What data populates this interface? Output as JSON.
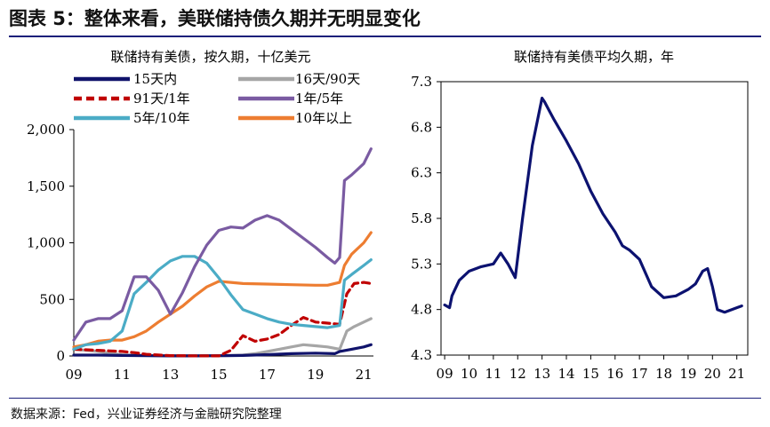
{
  "figure": {
    "title": "图表 5：整体来看，美联储持债久期并无明显变化",
    "source": "数据来源：Fed，兴业证券经济与金融研究院整理"
  },
  "chart_data": [
    {
      "type": "line",
      "title": "联储持有美债，按久期，十亿美元",
      "xlabel": "",
      "ylabel": "",
      "x_tick_labels": [
        "09",
        "11",
        "13",
        "15",
        "17",
        "19",
        "21"
      ],
      "xlim": [
        2009.0,
        2021.4
      ],
      "ylim": [
        0,
        2000
      ],
      "y_ticks": [
        0,
        500,
        1000,
        1500,
        2000
      ],
      "y_tick_labels": [
        "0",
        "500",
        "1,000",
        "1,500",
        "2,000"
      ],
      "legend_position": "top",
      "series": [
        {
          "name": "15天内",
          "color": "#10136b",
          "dash": "solid",
          "x": [
            2009,
            2010,
            2011,
            2012,
            2013,
            2014,
            2015,
            2016,
            2017,
            2018,
            2019,
            2019.8,
            2020.0,
            2020.5,
            2021.0,
            2021.3
          ],
          "y": [
            8,
            8,
            5,
            2,
            1,
            1,
            2,
            5,
            12,
            20,
            25,
            20,
            40,
            60,
            80,
            100
          ]
        },
        {
          "name": "16天/90天",
          "color": "#a6a6a6",
          "dash": "solid",
          "x": [
            2009,
            2009.5,
            2010,
            2010.5,
            2011,
            2012,
            2013,
            2014,
            2015,
            2016,
            2016.5,
            2017,
            2017.5,
            2018,
            2018.5,
            2019,
            2019.5,
            2020,
            2020.3,
            2020.6,
            2021,
            2021.3
          ],
          "y": [
            60,
            50,
            40,
            25,
            10,
            5,
            3,
            2,
            3,
            8,
            20,
            40,
            60,
            80,
            100,
            90,
            80,
            60,
            220,
            260,
            300,
            330
          ]
        },
        {
          "name": "91天/1年",
          "color": "#c00000",
          "dash": "dashed",
          "x": [
            2009,
            2009.5,
            2010,
            2011,
            2011.5,
            2012,
            2013,
            2014,
            2015,
            2015.5,
            2016,
            2016.5,
            2017,
            2017.5,
            2018,
            2018.5,
            2019,
            2019.5,
            2020,
            2020.3,
            2020.6,
            2021,
            2021.3
          ],
          "y": [
            60,
            55,
            50,
            40,
            30,
            15,
            3,
            1,
            1,
            50,
            180,
            130,
            150,
            190,
            270,
            340,
            300,
            290,
            280,
            550,
            640,
            650,
            640
          ]
        },
        {
          "name": "1年/5年",
          "color": "#7a5ba2",
          "dash": "solid",
          "x": [
            2009,
            2009.5,
            2010,
            2010.5,
            2011,
            2011.5,
            2012,
            2012.5,
            2013,
            2013.5,
            2014,
            2014.5,
            2015,
            2015.5,
            2016,
            2016.5,
            2017,
            2017.5,
            2018,
            2018.5,
            2019,
            2019.5,
            2019.8,
            2020,
            2020.2,
            2020.5,
            2021,
            2021.3
          ],
          "y": [
            140,
            300,
            330,
            330,
            400,
            700,
            700,
            580,
            370,
            560,
            790,
            980,
            1110,
            1140,
            1130,
            1200,
            1240,
            1200,
            1120,
            1040,
            960,
            870,
            820,
            870,
            1550,
            1600,
            1700,
            1830
          ]
        },
        {
          "name": "5年/10年",
          "color": "#4bacc6",
          "dash": "solid",
          "x": [
            2009,
            2009.5,
            2010,
            2010.5,
            2011,
            2011.5,
            2012,
            2012.5,
            2013,
            2013.5,
            2014,
            2014.5,
            2015,
            2015.5,
            2016,
            2016.5,
            2017,
            2017.5,
            2018,
            2018.5,
            2019,
            2019.5,
            2020,
            2020.2,
            2020.5,
            2021,
            2021.3
          ],
          "y": [
            60,
            100,
            110,
            130,
            220,
            550,
            650,
            760,
            840,
            880,
            880,
            820,
            690,
            540,
            410,
            370,
            330,
            300,
            280,
            270,
            260,
            250,
            270,
            670,
            720,
            800,
            850
          ]
        },
        {
          "name": "10年以上",
          "color": "#ed7d31",
          "dash": "solid",
          "x": [
            2009,
            2009.5,
            2010,
            2010.5,
            2011,
            2011.5,
            2012,
            2012.5,
            2013,
            2013.5,
            2014,
            2014.5,
            2015,
            2015.5,
            2016,
            2017,
            2018,
            2019,
            2019.5,
            2020,
            2020.2,
            2020.5,
            2021,
            2021.3
          ],
          "y": [
            80,
            100,
            130,
            140,
            140,
            170,
            220,
            300,
            370,
            440,
            530,
            610,
            660,
            650,
            640,
            635,
            630,
            625,
            625,
            650,
            800,
            900,
            1000,
            1090
          ]
        }
      ]
    },
    {
      "type": "line",
      "title": "联储持有美债平均久期，年",
      "xlabel": "",
      "ylabel": "",
      "x_tick_labels": [
        "09",
        "10",
        "11",
        "12",
        "13",
        "14",
        "15",
        "16",
        "17",
        "18",
        "19",
        "20",
        "21"
      ],
      "xlim": [
        2008.85,
        2021.45
      ],
      "ylim": [
        4.3,
        7.3
      ],
      "y_ticks": [
        4.3,
        4.8,
        5.3,
        5.8,
        6.3,
        6.8,
        7.3
      ],
      "y_tick_labels": [
        "4.3",
        "4.8",
        "5.3",
        "5.8",
        "6.3",
        "6.8",
        "7.3"
      ],
      "series": [
        {
          "name": "平均久期",
          "color": "#0c1270",
          "dash": "solid",
          "x": [
            2009.0,
            2009.2,
            2009.3,
            2009.6,
            2010.0,
            2010.5,
            2011.0,
            2011.3,
            2011.6,
            2011.9,
            2012.2,
            2012.6,
            2013.0,
            2013.1,
            2013.3,
            2013.5,
            2014.0,
            2014.5,
            2015.0,
            2015.5,
            2016.0,
            2016.3,
            2016.6,
            2017.0,
            2017.5,
            2018.0,
            2018.5,
            2019.0,
            2019.3,
            2019.6,
            2019.8,
            2020.0,
            2020.2,
            2020.5,
            2021.0,
            2021.2
          ],
          "y": [
            4.85,
            4.82,
            4.95,
            5.12,
            5.22,
            5.27,
            5.3,
            5.42,
            5.3,
            5.15,
            5.8,
            6.6,
            7.12,
            7.08,
            6.98,
            6.88,
            6.65,
            6.4,
            6.1,
            5.85,
            5.65,
            5.5,
            5.45,
            5.35,
            5.05,
            4.93,
            4.95,
            5.02,
            5.08,
            5.22,
            5.25,
            5.05,
            4.8,
            4.77,
            4.82,
            4.84
          ]
        }
      ]
    }
  ]
}
